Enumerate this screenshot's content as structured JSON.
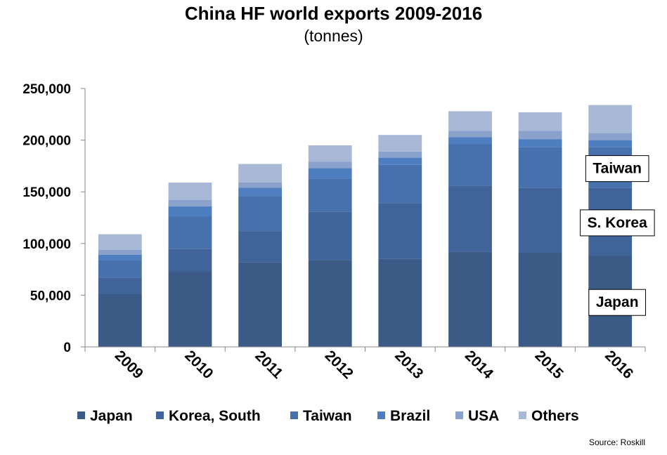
{
  "title": "China HF world exports 2009-2016",
  "subtitle": "(tonnes)",
  "source": "Source: Roskill",
  "chart_data": {
    "type": "bar",
    "stacked": true,
    "categories": [
      "2009",
      "2010",
      "2011",
      "2012",
      "2013",
      "2014",
      "2015",
      "2016"
    ],
    "series": [
      {
        "name": "Japan",
        "color": "#3B5A86",
        "values": [
          51000,
          73000,
          82000,
          84000,
          85000,
          92000,
          91000,
          88000
        ]
      },
      {
        "name": "Korea, South",
        "color": "#40649A",
        "values": [
          16000,
          22000,
          30000,
          47000,
          54000,
          64000,
          63000,
          66000
        ]
      },
      {
        "name": "Taiwan",
        "color": "#4671AD",
        "values": [
          17000,
          31000,
          34000,
          32000,
          37000,
          40000,
          39000,
          39000
        ]
      },
      {
        "name": "Brazil",
        "color": "#4F7EC0",
        "values": [
          5000,
          10000,
          8000,
          10000,
          7000,
          7000,
          8000,
          7000
        ]
      },
      {
        "name": "USA",
        "color": "#8AA2CB",
        "values": [
          5000,
          6000,
          5000,
          6000,
          6000,
          6000,
          8000,
          7000
        ]
      },
      {
        "name": "Others",
        "color": "#A9B8D6",
        "values": [
          15000,
          17000,
          18000,
          16000,
          16000,
          19000,
          18000,
          27000
        ]
      }
    ],
    "ylim": [
      0,
      250000
    ],
    "yticks": [
      0,
      50000,
      100000,
      150000,
      200000,
      250000
    ],
    "ytick_labels": [
      "0",
      "50,000",
      "100,000",
      "150,000",
      "200,000",
      "250,000"
    ],
    "legend_position": "bottom",
    "grid": false,
    "annotations": [
      {
        "text": "Taiwan",
        "category": "2016",
        "series": "Taiwan"
      },
      {
        "text": "S. Korea",
        "category": "2016",
        "series": "Korea, South"
      },
      {
        "text": "Japan",
        "category": "2016",
        "series": "Japan"
      }
    ]
  }
}
